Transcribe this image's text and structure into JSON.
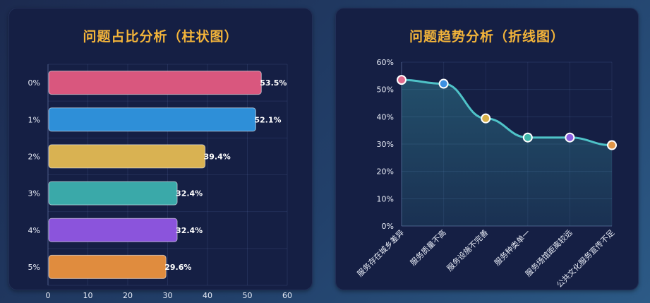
{
  "chart_data": [
    {
      "type": "bar",
      "orientation": "horizontal",
      "title": "问题占比分析（柱状图）",
      "categories": [
        "0%",
        "1%",
        "2%",
        "3%",
        "4%",
        "5%"
      ],
      "values": [
        53.5,
        52.1,
        39.4,
        32.4,
        32.4,
        29.6
      ],
      "value_labels": [
        "53.5%",
        "52.1%",
        "39.4%",
        "32.4%",
        "32.4%",
        "29.6%"
      ],
      "x_ticks": [
        "0",
        "10",
        "20",
        "30",
        "40",
        "50",
        "60"
      ],
      "xlim": [
        0,
        60
      ],
      "grid": true,
      "bar_colors": [
        "#d9577e",
        "#2e8fd8",
        "#d9b252",
        "#3aa9a9",
        "#8b54dc",
        "#e08c3e"
      ]
    },
    {
      "type": "line",
      "title": "问题趋势分析（折线图）",
      "categories": [
        "服务存在城乡差异",
        "服务质量不高",
        "服务设施不完善",
        "服务种类单一",
        "服务场馆距离较远",
        "公共文化服务宣传不足"
      ],
      "values": [
        53.5,
        52.1,
        39.4,
        32.4,
        32.4,
        29.6
      ],
      "y_ticks": [
        "0%",
        "10%",
        "20%",
        "30%",
        "40%",
        "50%",
        "60%"
      ],
      "ylim": [
        0,
        60
      ],
      "grid": true,
      "smooth": true,
      "area_fill": true,
      "line_color": "#4fc3c8",
      "point_colors": [
        "#e06b8e",
        "#3c8fe0",
        "#d8b048",
        "#3fb6a8",
        "#8a5ee0",
        "#e09648"
      ]
    }
  ]
}
